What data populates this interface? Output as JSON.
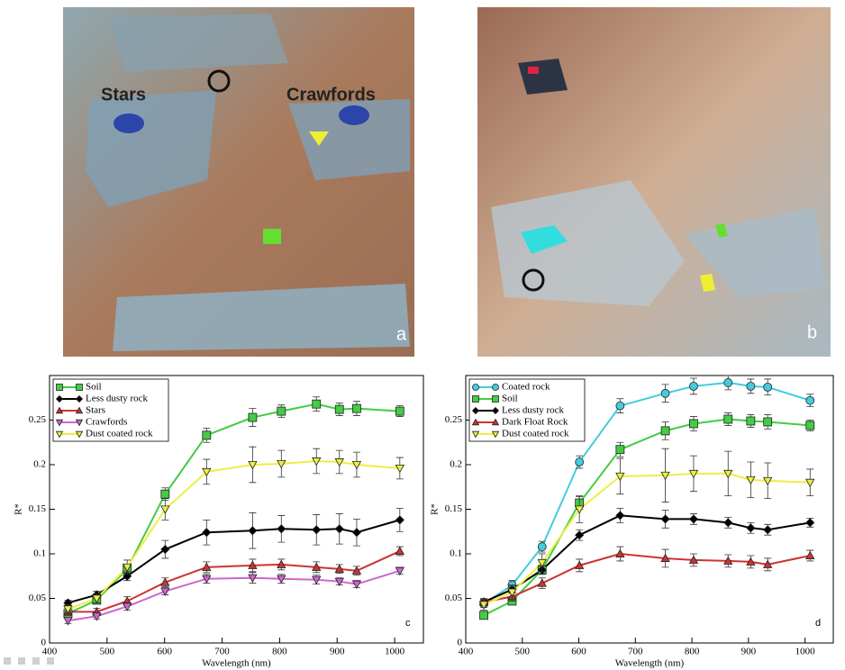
{
  "images": [
    {
      "labels": [
        "Stars",
        "Crawfords"
      ],
      "panel": "a"
    },
    {
      "panel": "b"
    }
  ],
  "chart_data": [
    {
      "type": "line",
      "panel": "c",
      "xlabel": "Wavelength (nm)",
      "ylabel": "R*",
      "x": [
        432,
        482,
        535,
        601,
        673,
        753,
        803,
        864,
        904,
        934,
        1009
      ],
      "xlim": [
        400,
        1050
      ],
      "xticks": [
        400,
        500,
        600,
        700,
        800,
        900,
        1000
      ],
      "ylim": [
        0,
        0.3
      ],
      "yticks": [
        0,
        0.05,
        0.1,
        0.15,
        0.2,
        0.25
      ],
      "legend": "upper-left",
      "series": [
        {
          "name": "Soil",
          "color": "#44cc44",
          "marker": "square",
          "values": [
            0.033,
            0.048,
            0.083,
            0.167,
            0.233,
            0.253,
            0.26,
            0.268,
            0.262,
            0.263,
            0.26
          ],
          "errors": [
            0.003,
            0.004,
            0.005,
            0.007,
            0.008,
            0.01,
            0.007,
            0.008,
            0.007,
            0.008,
            0.006
          ]
        },
        {
          "name": "Less dusty rock",
          "color": "#000000",
          "marker": "diamond",
          "values": [
            0.045,
            0.054,
            0.075,
            0.105,
            0.124,
            0.126,
            0.128,
            0.127,
            0.128,
            0.124,
            0.138
          ],
          "errors": [
            0.003,
            0.004,
            0.005,
            0.01,
            0.014,
            0.02,
            0.015,
            0.017,
            0.017,
            0.015,
            0.013
          ]
        },
        {
          "name": "Stars",
          "color": "#cc3333",
          "marker": "triangle-up",
          "values": [
            0.035,
            0.035,
            0.047,
            0.068,
            0.085,
            0.087,
            0.088,
            0.085,
            0.083,
            0.081,
            0.103
          ],
          "errors": [
            0.004,
            0.004,
            0.005,
            0.005,
            0.006,
            0.007,
            0.006,
            0.006,
            0.005,
            0.005,
            0.005
          ]
        },
        {
          "name": "Crawfords",
          "color": "#cc66cc",
          "marker": "triangle-down",
          "values": [
            0.025,
            0.03,
            0.041,
            0.058,
            0.072,
            0.073,
            0.072,
            0.071,
            0.069,
            0.066,
            0.081
          ],
          "errors": [
            0.003,
            0.003,
            0.004,
            0.004,
            0.005,
            0.006,
            0.005,
            0.005,
            0.004,
            0.004,
            0.004
          ]
        },
        {
          "name": "Dust coated rock",
          "color": "#eeee44",
          "marker": "triangle-down",
          "values": [
            0.038,
            0.05,
            0.085,
            0.15,
            0.192,
            0.2,
            0.201,
            0.204,
            0.203,
            0.2,
            0.196
          ],
          "errors": [
            0.005,
            0.005,
            0.008,
            0.012,
            0.014,
            0.02,
            0.015,
            0.014,
            0.013,
            0.014,
            0.012
          ]
        }
      ]
    },
    {
      "type": "line",
      "panel": "d",
      "xlabel": "Wavelength (nm)",
      "ylabel": "R*",
      "x": [
        432,
        482,
        535,
        601,
        673,
        753,
        803,
        864,
        904,
        934,
        1009
      ],
      "xlim": [
        400,
        1050
      ],
      "xticks": [
        400,
        500,
        600,
        700,
        800,
        900,
        1000
      ],
      "ylim": [
        0,
        0.3
      ],
      "yticks": [
        0,
        0.05,
        0.1,
        0.15,
        0.2,
        0.25
      ],
      "legend": "upper-left",
      "series": [
        {
          "name": "Coated rock",
          "color": "#44ccdd",
          "marker": "circle",
          "values": [
            0.044,
            0.065,
            0.108,
            0.203,
            0.266,
            0.28,
            0.288,
            0.292,
            0.288,
            0.287,
            0.272
          ],
          "errors": [
            0.004,
            0.005,
            0.006,
            0.007,
            0.008,
            0.01,
            0.009,
            0.008,
            0.008,
            0.009,
            0.007
          ]
        },
        {
          "name": "Soil",
          "color": "#44cc44",
          "marker": "square",
          "values": [
            0.031,
            0.047,
            0.082,
            0.157,
            0.217,
            0.238,
            0.246,
            0.251,
            0.249,
            0.248,
            0.244
          ],
          "errors": [
            0.003,
            0.004,
            0.005,
            0.007,
            0.008,
            0.01,
            0.008,
            0.007,
            0.007,
            0.008,
            0.006
          ]
        },
        {
          "name": "Less dusty rock",
          "color": "#000000",
          "marker": "diamond",
          "values": [
            0.046,
            0.06,
            0.082,
            0.121,
            0.143,
            0.139,
            0.139,
            0.135,
            0.129,
            0.127,
            0.135
          ],
          "errors": [
            0.003,
            0.004,
            0.005,
            0.006,
            0.008,
            0.01,
            0.006,
            0.006,
            0.006,
            0.006,
            0.005
          ]
        },
        {
          "name": "Dark Float Rock",
          "color": "#cc3333",
          "marker": "triangle-up",
          "values": [
            0.046,
            0.052,
            0.067,
            0.087,
            0.1,
            0.095,
            0.093,
            0.092,
            0.091,
            0.088,
            0.098
          ],
          "errors": [
            0.004,
            0.005,
            0.006,
            0.007,
            0.008,
            0.01,
            0.007,
            0.007,
            0.007,
            0.007,
            0.006
          ]
        },
        {
          "name": "Dust coated rock",
          "color": "#eeee44",
          "marker": "triangle-down",
          "values": [
            0.043,
            0.057,
            0.09,
            0.15,
            0.187,
            0.188,
            0.19,
            0.19,
            0.183,
            0.182,
            0.18
          ],
          "errors": [
            0.006,
            0.008,
            0.01,
            0.015,
            0.02,
            0.03,
            0.02,
            0.025,
            0.02,
            0.02,
            0.015
          ]
        }
      ]
    }
  ]
}
